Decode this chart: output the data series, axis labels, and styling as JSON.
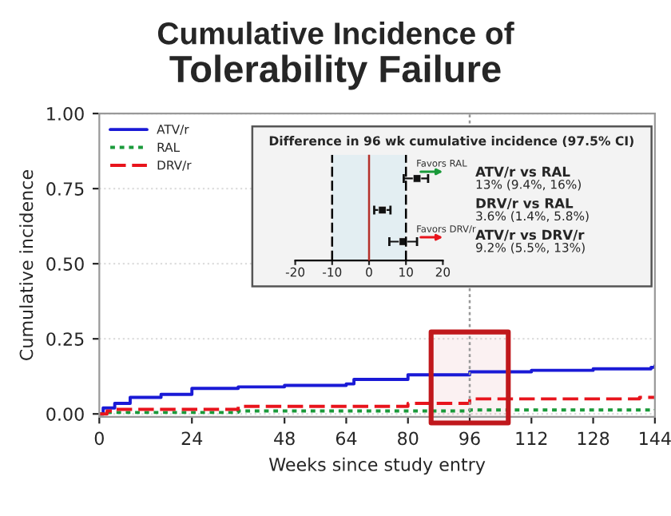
{
  "chart_data": [
    {
      "type": "step",
      "title": "Cumulative Incidence of",
      "subtitle": "Tolerability Failure",
      "xlabel": "Weeks since study entry",
      "ylabel": "Cumulative incidence",
      "series": [
        {
          "name": "ATV/r",
          "color": "#1a1ad6",
          "line_style": "solid",
          "x": [
            0,
            1,
            4,
            8,
            16,
            24,
            36,
            48,
            64,
            66,
            80,
            96,
            112,
            128,
            143,
            144
          ],
          "values": [
            0,
            0.02,
            0.035,
            0.055,
            0.065,
            0.085,
            0.09,
            0.095,
            0.1,
            0.115,
            0.13,
            0.14,
            0.145,
            0.15,
            0.155,
            0.16
          ]
        },
        {
          "name": "RAL",
          "color": "#1a9a3a",
          "line_style": "dotted",
          "x": [
            0,
            2,
            36,
            96,
            144
          ],
          "values": [
            0,
            0.005,
            0.01,
            0.013,
            0.015
          ]
        },
        {
          "name": "DRV/r",
          "color": "#e8141c",
          "line_style": "dashed",
          "x": [
            0,
            2,
            4,
            36,
            80,
            96,
            140,
            144
          ],
          "values": [
            0,
            0.01,
            0.015,
            0.025,
            0.035,
            0.05,
            0.055,
            0.055
          ]
        }
      ],
      "xlim": [
        0,
        144
      ],
      "xticks": [
        0,
        24,
        48,
        64,
        80,
        96,
        112,
        128,
        144
      ],
      "ylim": [
        -0.01,
        1.0
      ],
      "yticks": [
        {
          "value": 0,
          "label": "0.00"
        },
        {
          "value": 0.25,
          "label": "0.25"
        },
        {
          "value": 0.5,
          "label": "0.50"
        },
        {
          "value": 0.75,
          "label": "0.75"
        },
        {
          "value": 1.0,
          "label": "1.00"
        }
      ],
      "grid": "y",
      "legend": "top left",
      "ref_lines": [
        {
          "axis": "x",
          "value": 96,
          "color": "#999999",
          "line_style": "dotted"
        }
      ],
      "bands": [
        {
          "axis": "x",
          "from": 86,
          "to": 106,
          "color": "#c0181c"
        }
      ]
    },
    {
      "type": "scatter",
      "orientation": "horizontal",
      "title": "Difference in 96 wk cumulative incidence (97.5% CI)",
      "categories": [
        "ATV/r vs RAL",
        "DRV/r vs RAL",
        "ATV/r vs DRV/r"
      ],
      "values": [
        13,
        3.6,
        9.2
      ],
      "errors": [
        [
          9.4,
          16
        ],
        [
          1.4,
          5.8
        ],
        [
          5.5,
          13
        ]
      ],
      "value_labels": [
        "13% (9.4%, 16%)",
        "3.6% (1.4%, 5.8%)",
        "9.2% (5.5%, 13%)"
      ],
      "color": "#111111",
      "marker": "square",
      "xlim": [
        -20,
        20
      ],
      "xticks": [
        -20,
        -10,
        0,
        10,
        20
      ],
      "ref_lines": [
        {
          "axis": "x",
          "value": -10,
          "color": "#000000",
          "line_style": "dashed"
        },
        {
          "axis": "x",
          "value": 0,
          "color": "#b5302a",
          "line_style": "solid"
        },
        {
          "axis": "x",
          "value": 10,
          "color": "#000000",
          "line_style": "dashed"
        }
      ],
      "bands": [
        {
          "axis": "x",
          "from": -10,
          "to": 10,
          "color": "#e3eef2"
        }
      ],
      "annotations": [
        "Favors RAL",
        "Favors DRV/r"
      ]
    }
  ]
}
